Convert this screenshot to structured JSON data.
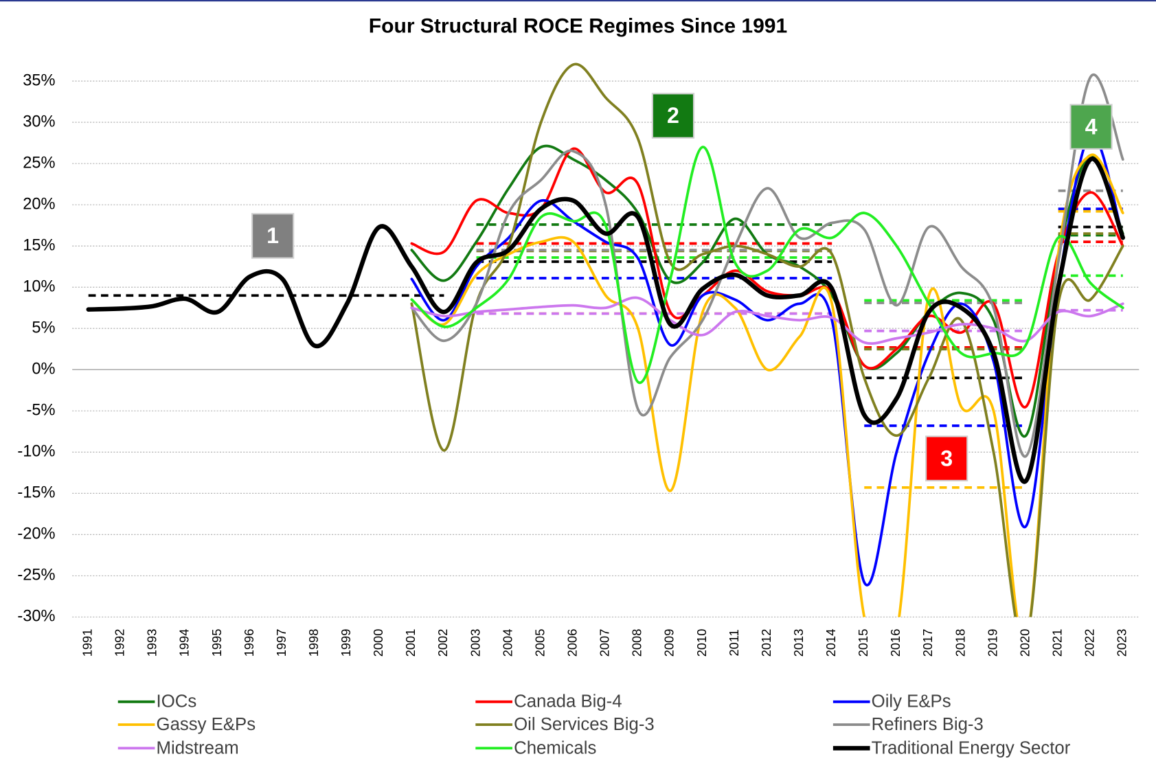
{
  "chart_data": {
    "type": "line",
    "title": "Four Structural ROCE Regimes Since 1991",
    "x": [
      1991,
      1992,
      1993,
      1994,
      1995,
      1996,
      1997,
      1998,
      1999,
      2000,
      2001,
      2002,
      2003,
      2004,
      2005,
      2006,
      2007,
      2008,
      2009,
      2010,
      2011,
      2012,
      2013,
      2014,
      2015,
      2016,
      2017,
      2018,
      2019,
      2020,
      2021,
      2022,
      2023
    ],
    "xlim": [
      1990.5,
      2023.5
    ],
    "ylim": [
      -30,
      35
    ],
    "yticks": [
      {
        "value": 35,
        "label": "35%"
      },
      {
        "value": 30,
        "label": "30%"
      },
      {
        "value": 25,
        "label": "25%"
      },
      {
        "value": 20,
        "label": "20%"
      },
      {
        "value": 15,
        "label": "15%"
      },
      {
        "value": 10,
        "label": "10%"
      },
      {
        "value": 5,
        "label": "5%"
      },
      {
        "value": 0,
        "label": "0%"
      },
      {
        "value": -5,
        "label": "-5%"
      },
      {
        "value": -10,
        "label": "-10%"
      },
      {
        "value": -15,
        "label": "-15%"
      },
      {
        "value": -20,
        "label": "-20%"
      },
      {
        "value": -25,
        "label": "-25%"
      },
      {
        "value": -30,
        "label": "-30%"
      }
    ],
    "grid": true,
    "legend": "bottom",
    "regimes": [
      {
        "label": "1",
        "start": 1991,
        "end": 2002,
        "color": "#808080"
      },
      {
        "label": "2",
        "start": 2003,
        "end": 2014,
        "color": "#127a12"
      },
      {
        "label": "3",
        "start": 2015,
        "end": 2020,
        "color": "#ff0000"
      },
      {
        "label": "4",
        "start": 2021,
        "end": 2023,
        "color": "#4ea64e"
      }
    ],
    "series": [
      {
        "name": "IOCs",
        "color": "#127a12",
        "line_width": 3.5,
        "values": [
          null,
          null,
          null,
          null,
          null,
          null,
          null,
          null,
          null,
          null,
          14.5,
          10.8,
          15.5,
          22,
          27,
          25.5,
          23,
          19,
          10.8,
          13,
          18.3,
          14,
          12.5,
          9,
          0.5,
          2,
          7,
          9.3,
          6,
          -8,
          14,
          26,
          16.5
        ],
        "regime_averages": [
          null,
          17.6,
          2.5,
          16.3
        ]
      },
      {
        "name": "Canada Big-4",
        "color": "#ff0000",
        "line_width": 3.5,
        "values": [
          null,
          null,
          null,
          null,
          null,
          null,
          null,
          null,
          null,
          null,
          15.3,
          14.3,
          20.5,
          19,
          19.5,
          26.8,
          21.5,
          22.5,
          7,
          9,
          12,
          9.5,
          9,
          9.5,
          0.5,
          2.5,
          6.5,
          4.5,
          8,
          -4.5,
          14,
          21.5,
          15
        ],
        "regime_averages": [
          null,
          15.3,
          2.7,
          15.5
        ]
      },
      {
        "name": "Oily E&Ps",
        "color": "#0000ff",
        "line_width": 3.5,
        "values": [
          null,
          null,
          null,
          null,
          null,
          null,
          null,
          null,
          null,
          null,
          11,
          6,
          12.5,
          16,
          20.5,
          18,
          15.5,
          13.5,
          3,
          9,
          8.5,
          6,
          8,
          6,
          -25.8,
          -10,
          2,
          8,
          1,
          -19,
          10,
          28.5,
          16
        ],
        "regime_averages": [
          null,
          11.1,
          -6.8,
          19.5
        ]
      },
      {
        "name": "Gassy E&Ps",
        "color": "#ffc000",
        "line_width": 3.5,
        "values": [
          null,
          null,
          null,
          null,
          null,
          null,
          null,
          null,
          null,
          null,
          8.5,
          5.5,
          11.5,
          14,
          15.5,
          15.5,
          9,
          5,
          -14.7,
          7,
          7.5,
          0,
          4,
          8,
          -30,
          -32,
          9,
          -4.5,
          -5,
          -33,
          14,
          26,
          19
        ],
        "regime_averages": [
          null,
          6.8,
          -14.3,
          19.2
        ]
      },
      {
        "name": "Oil Services Big-3",
        "color": "#808020",
        "line_width": 3.5,
        "values": [
          null,
          null,
          null,
          null,
          null,
          null,
          null,
          null,
          null,
          null,
          8,
          -9.8,
          8,
          15,
          30,
          37,
          33,
          28,
          13,
          14,
          15,
          14,
          12.5,
          14,
          -1,
          -8,
          -1,
          6,
          -10,
          -33,
          8,
          8.5,
          15
        ],
        "regime_averages": [
          null,
          14.4,
          2.5,
          16.5
        ]
      },
      {
        "name": "Refiners Big-3",
        "color": "#8c8c8c",
        "line_width": 3.5,
        "values": [
          null,
          null,
          null,
          null,
          null,
          null,
          null,
          null,
          null,
          null,
          7.5,
          3.5,
          8,
          19,
          23,
          26.5,
          20,
          -4.8,
          1.5,
          6,
          15,
          22,
          16,
          17.8,
          17,
          7.8,
          17.3,
          12.5,
          7.5,
          -10.5,
          13,
          35.5,
          25.5
        ],
        "regime_averages": [
          null,
          14.5,
          8.1,
          21.7
        ]
      },
      {
        "name": "Midstream",
        "color": "#cc77ee",
        "line_width": 3.5,
        "values": [
          null,
          null,
          null,
          null,
          null,
          null,
          null,
          null,
          null,
          null,
          7.5,
          6.5,
          7,
          7.3,
          7.6,
          7.8,
          7.5,
          8.7,
          6,
          4.2,
          7,
          6.5,
          6,
          6.3,
          3.3,
          3.8,
          4.5,
          5.5,
          5,
          3.5,
          7,
          6.5,
          8
        ],
        "regime_averages": [
          null,
          6.8,
          4.7,
          7.2
        ]
      },
      {
        "name": "Chemicals",
        "color": "#22ee22",
        "line_width": 3.5,
        "values": [
          null,
          null,
          null,
          null,
          null,
          null,
          null,
          null,
          null,
          null,
          8.5,
          5.2,
          7.5,
          11,
          18.5,
          18,
          17.5,
          -1.5,
          11,
          27,
          13,
          12,
          17,
          16,
          19,
          15,
          8,
          2,
          2,
          3,
          16,
          10.5,
          7.5
        ],
        "regime_averages": [
          null,
          13.6,
          8.4,
          11.4
        ]
      },
      {
        "name": "Traditional Energy Sector",
        "color": "#000000",
        "line_width": 6,
        "values": [
          7.3,
          7.4,
          7.7,
          8.6,
          7,
          11.3,
          11,
          2.9,
          8,
          17.3,
          12.5,
          7,
          13,
          14.5,
          19.5,
          20.5,
          16.5,
          18.5,
          5.5,
          9.8,
          11.5,
          9,
          9,
          9.8,
          -5.5,
          -3.5,
          7,
          7.5,
          2,
          -13.5,
          10,
          25.5,
          16
        ],
        "regime_averages": [
          9,
          13.1,
          -1,
          17.3
        ]
      }
    ]
  }
}
